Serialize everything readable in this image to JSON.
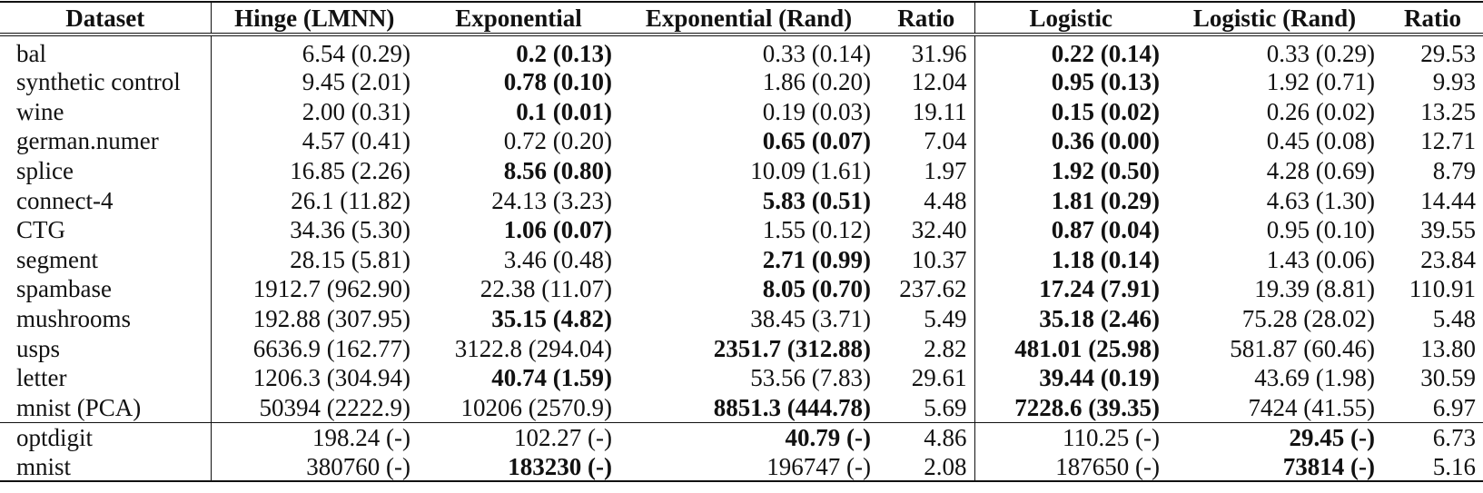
{
  "table": {
    "columns": [
      "Dataset",
      "Hinge (LMNN)",
      "Exponential",
      "Exponential (Rand)",
      "Ratio",
      "Logistic",
      "Logistic (Rand)",
      "Ratio"
    ],
    "group1": [
      {
        "dataset": "bal",
        "cells": [
          "6.54 (0.29)",
          "0.2 (0.13)",
          "0.33 (0.14)",
          "31.96",
          "0.22 (0.14)",
          "0.33 (0.29)",
          "29.53"
        ],
        "bold": [
          false,
          true,
          false,
          false,
          true,
          false,
          false
        ]
      },
      {
        "dataset": "synthetic control",
        "cells": [
          "9.45 (2.01)",
          "0.78 (0.10)",
          "1.86 (0.20)",
          "12.04",
          "0.95 (0.13)",
          "1.92 (0.71)",
          "9.93"
        ],
        "bold": [
          false,
          true,
          false,
          false,
          true,
          false,
          false
        ]
      },
      {
        "dataset": "wine",
        "cells": [
          "2.00 (0.31)",
          "0.1 (0.01)",
          "0.19 (0.03)",
          "19.11",
          "0.15 (0.02)",
          "0.26 (0.02)",
          "13.25"
        ],
        "bold": [
          false,
          true,
          false,
          false,
          true,
          false,
          false
        ]
      },
      {
        "dataset": "german.numer",
        "cells": [
          "4.57 (0.41)",
          "0.72 (0.20)",
          "0.65 (0.07)",
          "7.04",
          "0.36 (0.00)",
          "0.45 (0.08)",
          "12.71"
        ],
        "bold": [
          false,
          false,
          true,
          false,
          true,
          false,
          false
        ]
      },
      {
        "dataset": "splice",
        "cells": [
          "16.85 (2.26)",
          "8.56 (0.80)",
          "10.09 (1.61)",
          "1.97",
          "1.92 (0.50)",
          "4.28 (0.69)",
          "8.79"
        ],
        "bold": [
          false,
          true,
          false,
          false,
          true,
          false,
          false
        ]
      },
      {
        "dataset": "connect-4",
        "cells": [
          "26.1 (11.82)",
          "24.13 (3.23)",
          "5.83 (0.51)",
          "4.48",
          "1.81 (0.29)",
          "4.63 (1.30)",
          "14.44"
        ],
        "bold": [
          false,
          false,
          true,
          false,
          true,
          false,
          false
        ]
      },
      {
        "dataset": "CTG",
        "cells": [
          "34.36 (5.30)",
          "1.06 (0.07)",
          "1.55 (0.12)",
          "32.40",
          "0.87 (0.04)",
          "0.95 (0.10)",
          "39.55"
        ],
        "bold": [
          false,
          true,
          false,
          false,
          true,
          false,
          false
        ]
      },
      {
        "dataset": "segment",
        "cells": [
          "28.15 (5.81)",
          "3.46 (0.48)",
          "2.71 (0.99)",
          "10.37",
          "1.18 (0.14)",
          "1.43 (0.06)",
          "23.84"
        ],
        "bold": [
          false,
          false,
          true,
          false,
          true,
          false,
          false
        ]
      },
      {
        "dataset": "spambase",
        "cells": [
          "1912.7 (962.90)",
          "22.38 (11.07)",
          "8.05 (0.70)",
          "237.62",
          "17.24 (7.91)",
          "19.39 (8.81)",
          "110.91"
        ],
        "bold": [
          false,
          false,
          true,
          false,
          true,
          false,
          false
        ]
      },
      {
        "dataset": "mushrooms",
        "cells": [
          "192.88 (307.95)",
          "35.15 (4.82)",
          "38.45 (3.71)",
          "5.49",
          "35.18 (2.46)",
          "75.28 (28.02)",
          "5.48"
        ],
        "bold": [
          false,
          true,
          false,
          false,
          true,
          false,
          false
        ]
      },
      {
        "dataset": "usps",
        "cells": [
          "6636.9 (162.77)",
          "3122.8 (294.04)",
          "2351.7 (312.88)",
          "2.82",
          "481.01 (25.98)",
          "581.87 (60.46)",
          "13.80"
        ],
        "bold": [
          false,
          false,
          true,
          false,
          true,
          false,
          false
        ]
      },
      {
        "dataset": "letter",
        "cells": [
          "1206.3 (304.94)",
          "40.74 (1.59)",
          "53.56 (7.83)",
          "29.61",
          "39.44 (0.19)",
          "43.69 (1.98)",
          "30.59"
        ],
        "bold": [
          false,
          true,
          false,
          false,
          true,
          false,
          false
        ]
      },
      {
        "dataset": "mnist (PCA)",
        "cells": [
          "50394 (2222.9)",
          "10206 (2570.9)",
          "8851.3 (444.78)",
          "5.69",
          "7228.6 (39.35)",
          "7424 (41.55)",
          "6.97"
        ],
        "bold": [
          false,
          false,
          true,
          false,
          true,
          false,
          false
        ]
      }
    ],
    "group2": [
      {
        "dataset": "optdigit",
        "cells": [
          "198.24 (-)",
          "102.27 (-)",
          "40.79 (-)",
          "4.86",
          "110.25 (-)",
          "29.45 (-)",
          "6.73"
        ],
        "bold": [
          false,
          false,
          true,
          false,
          false,
          true,
          false
        ]
      },
      {
        "dataset": "mnist",
        "cells": [
          "380760 (-)",
          "183230 (-)",
          "196747 (-)",
          "2.08",
          "187650 (-)",
          "73814 (-)",
          "5.16"
        ],
        "bold": [
          false,
          true,
          false,
          false,
          false,
          true,
          false
        ]
      }
    ]
  }
}
